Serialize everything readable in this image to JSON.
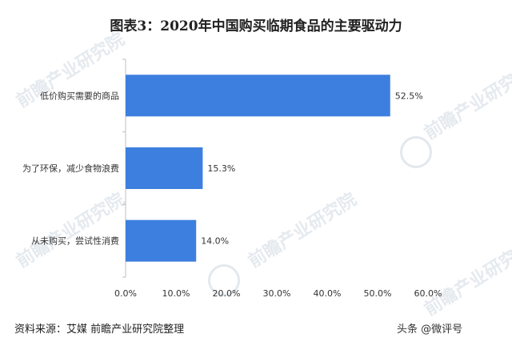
{
  "title": "图表3：2020年中国购买临期食品的主要驱动力",
  "watermark_text": "前瞻产业研究院",
  "source": "资料来源：艾媒 前瞻产业研究院整理",
  "attribution": "头条 @微评号",
  "colors": {
    "bar": "#3d7fde",
    "axis": "#bfbfbf",
    "text": "#333333"
  },
  "chart_data": {
    "type": "bar",
    "orientation": "horizontal",
    "categories": [
      "低价购买需要的商品",
      "为了环保，减少食物浪费",
      "从未购买，尝试性消费"
    ],
    "values": [
      52.5,
      15.3,
      14.0
    ],
    "value_labels": [
      "52.5%",
      "15.3%",
      "14.0%"
    ],
    "xlim": [
      0,
      60
    ],
    "x_ticks": [
      "0.0%",
      "10.0%",
      "20.0%",
      "30.0%",
      "40.0%",
      "50.0%",
      "60.0%"
    ],
    "grid": false
  }
}
